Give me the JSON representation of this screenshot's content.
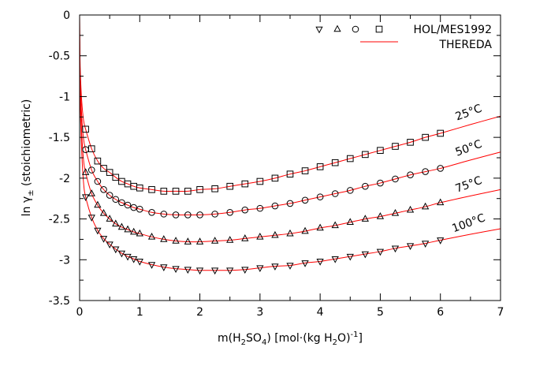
{
  "chart_data": {
    "type": "scatter",
    "xlabel": "m(H2SO4) [mol·(kg H2O)-1]",
    "xlabel_parts": {
      "pre": "m(H",
      "sub1": "2",
      "mid": "SO",
      "sub2": "4",
      "post": ") [mol·(kg H",
      "sub3": "2",
      "post2": "O)",
      "sup": "-1",
      "end": "]"
    },
    "ylabel": "ln γ± (stoichiometric)",
    "ylabel_parts": {
      "pre": "ln γ",
      "sub": "±",
      "post": " (stoichiometric)"
    },
    "xlim": [
      0,
      7
    ],
    "ylim": [
      -3.5,
      0
    ],
    "xticks": [
      0,
      1,
      2,
      3,
      4,
      5,
      6,
      7
    ],
    "yticks": [
      0,
      -0.5,
      -1,
      -1.5,
      -2,
      -2.5,
      -3,
      -3.5
    ],
    "ytick_labels": [
      "0",
      "-0.5",
      "-1",
      "-1.5",
      "-2",
      "-2.5",
      "-3",
      "-3.5"
    ],
    "grid": false,
    "legend_placement": "top-right",
    "legend": {
      "points_label": "HOL/MES1992",
      "line_label": "THEREDA"
    },
    "line_color": "#ff0000",
    "marker_color": "#000000",
    "x": [
      0.1,
      0.2,
      0.3,
      0.4,
      0.5,
      0.6,
      0.7,
      0.8,
      0.9,
      1.0,
      1.2,
      1.4,
      1.6,
      1.8,
      2.0,
      2.25,
      2.5,
      2.75,
      3.0,
      3.25,
      3.5,
      3.75,
      4.0,
      4.25,
      4.5,
      4.75,
      5.0,
      5.25,
      5.5,
      5.75,
      6.0
    ],
    "series": [
      {
        "label": "25°C",
        "marker": "square",
        "values": [
          -1.4,
          -1.64,
          -1.79,
          -1.88,
          -1.93,
          -1.99,
          -2.04,
          -2.07,
          -2.1,
          -2.12,
          -2.14,
          -2.16,
          -2.16,
          -2.16,
          -2.14,
          -2.13,
          -2.1,
          -2.07,
          -2.04,
          -2.0,
          -1.95,
          -1.91,
          -1.86,
          -1.81,
          -1.76,
          -1.71,
          -1.66,
          -1.61,
          -1.56,
          -1.5,
          -1.45
        ],
        "curve_end": -1.24
      },
      {
        "label": "50°C",
        "marker": "circle",
        "values": [
          -1.65,
          -1.9,
          -2.04,
          -2.14,
          -2.21,
          -2.26,
          -2.3,
          -2.33,
          -2.36,
          -2.38,
          -2.42,
          -2.44,
          -2.45,
          -2.45,
          -2.45,
          -2.44,
          -2.42,
          -2.39,
          -2.37,
          -2.34,
          -2.31,
          -2.27,
          -2.23,
          -2.19,
          -2.15,
          -2.1,
          -2.06,
          -2.01,
          -1.96,
          -1.92,
          -1.88
        ],
        "curve_end": -1.68
      },
      {
        "label": "75°C",
        "marker": "triangle-up",
        "values": [
          -1.93,
          -2.19,
          -2.33,
          -2.43,
          -2.5,
          -2.56,
          -2.6,
          -2.63,
          -2.66,
          -2.68,
          -2.72,
          -2.75,
          -2.77,
          -2.78,
          -2.78,
          -2.77,
          -2.76,
          -2.74,
          -2.72,
          -2.7,
          -2.68,
          -2.65,
          -2.61,
          -2.58,
          -2.54,
          -2.5,
          -2.47,
          -2.43,
          -2.39,
          -2.35,
          -2.3
        ],
        "curve_end": -2.14
      },
      {
        "label": "100°C",
        "marker": "triangle-down",
        "values": [
          -2.23,
          -2.48,
          -2.64,
          -2.74,
          -2.81,
          -2.87,
          -2.92,
          -2.96,
          -2.99,
          -3.02,
          -3.06,
          -3.09,
          -3.11,
          -3.12,
          -3.13,
          -3.13,
          -3.13,
          -3.12,
          -3.1,
          -3.08,
          -3.07,
          -3.04,
          -3.02,
          -2.99,
          -2.96,
          -2.93,
          -2.9,
          -2.86,
          -2.83,
          -2.8,
          -2.76
        ],
        "curve_end": -2.62
      }
    ]
  }
}
